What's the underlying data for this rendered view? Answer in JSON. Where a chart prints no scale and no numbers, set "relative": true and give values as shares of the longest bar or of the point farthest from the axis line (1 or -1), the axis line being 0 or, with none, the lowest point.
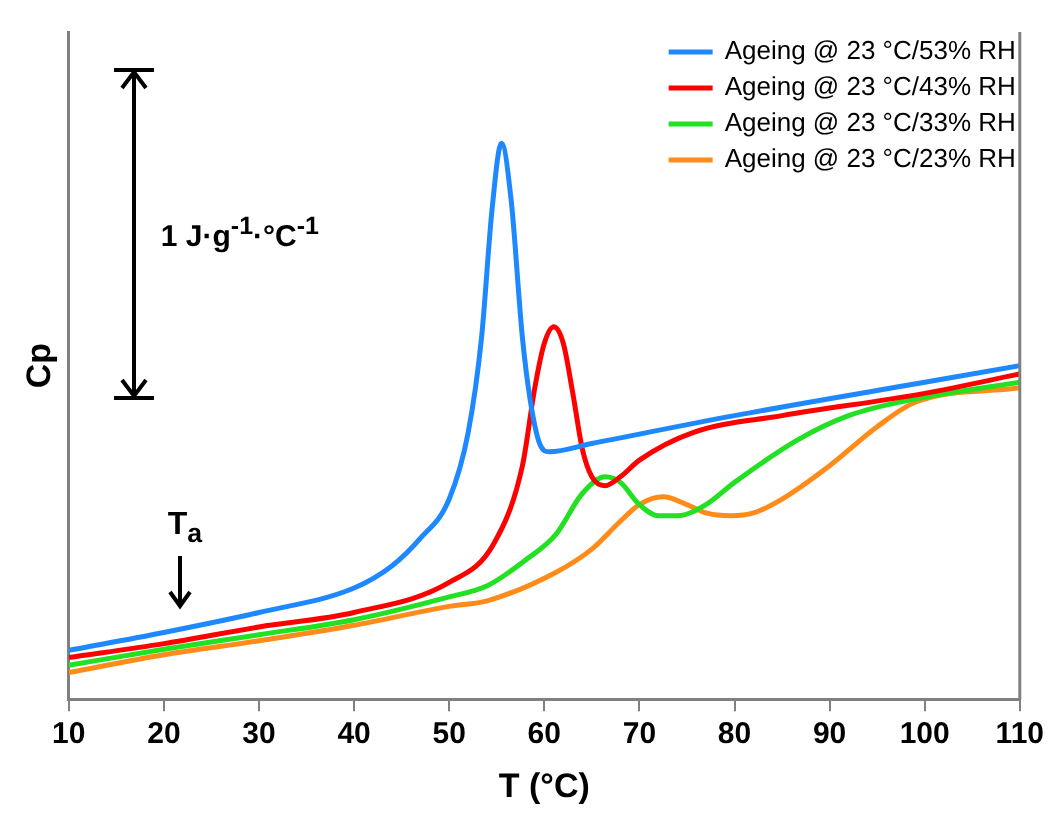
{
  "chart_data": {
    "type": "line",
    "xlabel": "T (°C)",
    "ylabel": "Cp",
    "relative": true,
    "xlim": [
      10,
      110
    ],
    "xticks": [
      10,
      20,
      30,
      40,
      50,
      60,
      70,
      80,
      90,
      100,
      110
    ],
    "legend": "top right",
    "grid": false,
    "marker": "none",
    "line_style": "solid",
    "annotations": [
      "1 J·g$^{-1}$·°C$^{-1}$",
      "T$_{a}$"
    ],
    "series": [
      {
        "name": "Ageing @ 23 °C/53% RH",
        "color": "#1e88ff",
        "x": [
          10,
          20,
          30,
          40,
          44,
          47,
          50,
          52,
          53.4,
          54.5,
          55.5,
          56.5,
          57.7,
          58.5,
          59.5,
          60.5,
          65,
          80,
          100,
          110
        ],
        "values": [
          0.088,
          0.12,
          0.156,
          0.2,
          0.24,
          0.29,
          0.36,
          0.48,
          0.65,
          0.88,
          1.0,
          0.9,
          0.65,
          0.54,
          0.46,
          0.445,
          0.46,
          0.51,
          0.57,
          0.6
        ]
      },
      {
        "name": "Ageing @ 23 °C/43% RH",
        "color": "#ff0000",
        "x": [
          10,
          20,
          30,
          40,
          50,
          54.7,
          57.7,
          59,
          60,
          61,
          62,
          63,
          64,
          65,
          66.4,
          68,
          70,
          75.7,
          85,
          100,
          110
        ],
        "values": [
          0.075,
          0.1,
          0.13,
          0.156,
          0.21,
          0.28,
          0.42,
          0.56,
          0.64,
          0.67,
          0.64,
          0.55,
          0.45,
          0.4,
          0.384,
          0.4,
          0.43,
          0.48,
          0.51,
          0.55,
          0.585
        ]
      },
      {
        "name": "Ageing @ 23 °C/33% RH",
        "color": "#22e022",
        "x": [
          10,
          20,
          30,
          40,
          50,
          54,
          58,
          61.2,
          64,
          66.4,
          68,
          70,
          72,
          74,
          77,
          80,
          86.6,
          92,
          99,
          110
        ],
        "values": [
          0.061,
          0.09,
          0.116,
          0.143,
          0.184,
          0.204,
          0.25,
          0.296,
          0.37,
          0.4,
          0.39,
          0.35,
          0.33,
          0.33,
          0.35,
          0.39,
          0.466,
          0.51,
          0.54,
          0.57
        ]
      },
      {
        "name": "Ageing @ 23 °C/23% RH",
        "color": "#ff8c1a",
        "x": [
          10,
          20,
          30,
          40,
          50,
          54,
          61.2,
          65,
          68,
          70,
          72.5,
          75,
          77,
          79.6,
          82,
          85,
          90,
          95,
          99,
          110
        ],
        "values": [
          0.048,
          0.08,
          0.105,
          0.133,
          0.167,
          0.177,
          0.228,
          0.27,
          0.32,
          0.35,
          0.364,
          0.35,
          0.335,
          0.33,
          0.335,
          0.36,
          0.42,
          0.49,
          0.534,
          0.56
        ]
      }
    ]
  }
}
